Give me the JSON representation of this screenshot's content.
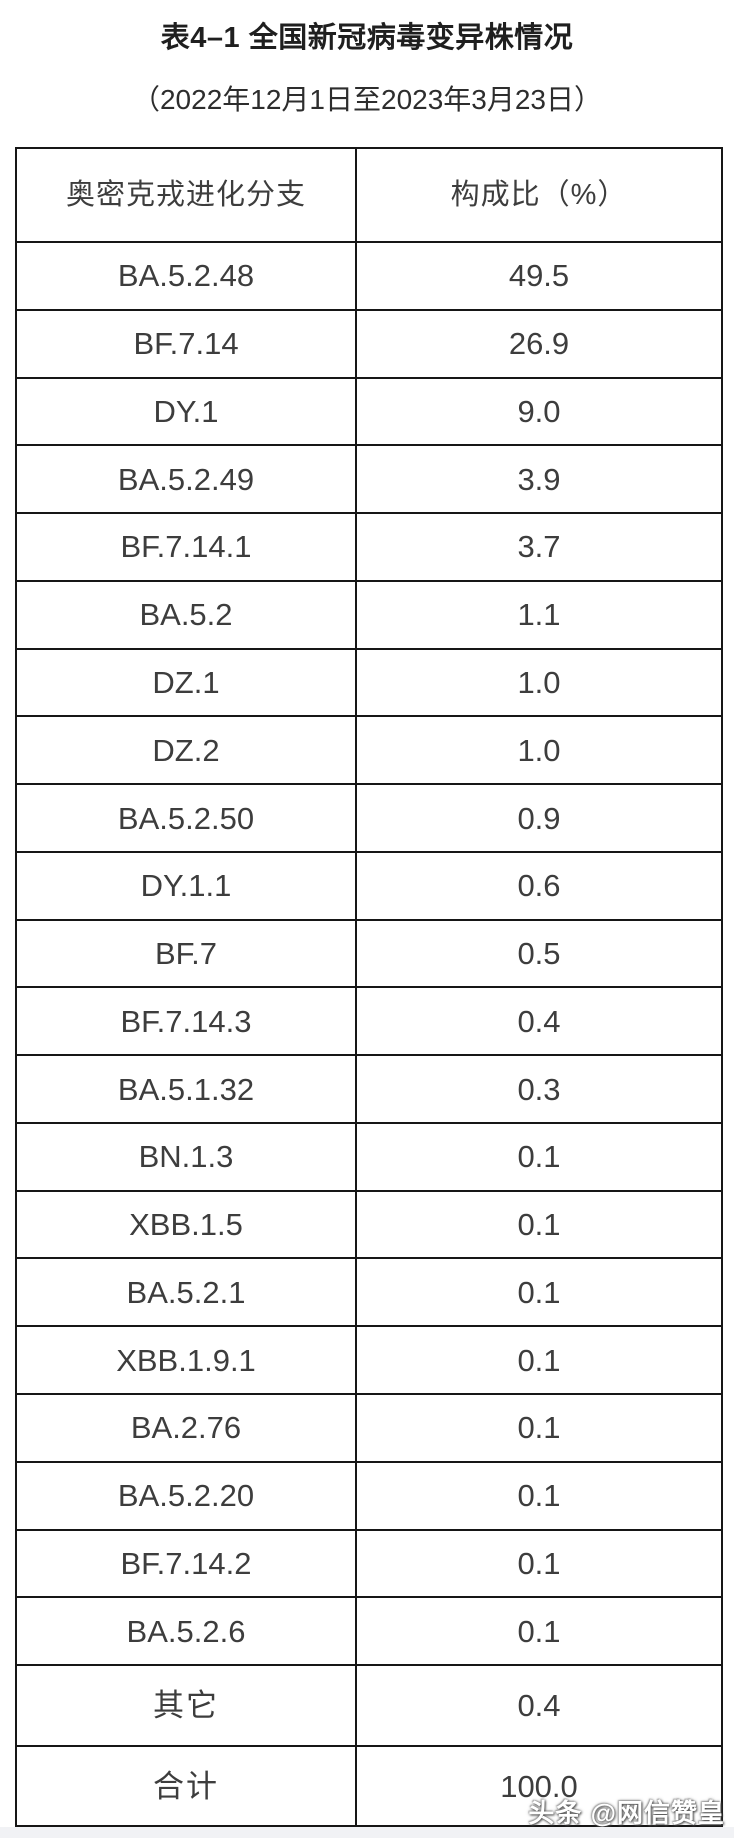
{
  "header": {
    "title": "表4–1 全国新冠病毒变异株情况",
    "subtitle": "（2022年12月1日至2023年3月23日）"
  },
  "watermark": {
    "text": "头条 @网信赞皇"
  },
  "colors": {
    "border_color": "#161616",
    "cell_text": "#3d3d3d",
    "title_text": "#1f1f1f",
    "footer_strip": "#f1f2f5"
  },
  "chart_data": {
    "type": "table",
    "title": "表4–1 全国新冠病毒变异株情况",
    "subtitle": "（2022年12月1日至2023年3月23日）",
    "columns": [
      "奥密克戎进化分支",
      "构成比（%）"
    ],
    "rows": [
      {
        "label": "BA.5.2.48",
        "value": "49.5"
      },
      {
        "label": "BF.7.14",
        "value": "26.9"
      },
      {
        "label": "DY.1",
        "value": "9.0"
      },
      {
        "label": "BA.5.2.49",
        "value": "3.9"
      },
      {
        "label": "BF.7.14.1",
        "value": "3.7"
      },
      {
        "label": "BA.5.2",
        "value": "1.1"
      },
      {
        "label": "DZ.1",
        "value": "1.0"
      },
      {
        "label": "DZ.2",
        "value": "1.0"
      },
      {
        "label": "BA.5.2.50",
        "value": "0.9"
      },
      {
        "label": "DY.1.1",
        "value": "0.6"
      },
      {
        "label": "BF.7",
        "value": "0.5"
      },
      {
        "label": "BF.7.14.3",
        "value": "0.4"
      },
      {
        "label": "BA.5.1.32",
        "value": "0.3"
      },
      {
        "label": "BN.1.3",
        "value": "0.1"
      },
      {
        "label": "XBB.1.5",
        "value": "0.1"
      },
      {
        "label": "BA.5.2.1",
        "value": "0.1"
      },
      {
        "label": "XBB.1.9.1",
        "value": "0.1"
      },
      {
        "label": "BA.2.76",
        "value": "0.1"
      },
      {
        "label": "BA.5.2.20",
        "value": "0.1"
      },
      {
        "label": "BF.7.14.2",
        "value": "0.1"
      },
      {
        "label": "BA.5.2.6",
        "value": "0.1"
      },
      {
        "label": "其它",
        "value": "0.4"
      },
      {
        "label": "合计",
        "value": "100.0"
      }
    ]
  }
}
